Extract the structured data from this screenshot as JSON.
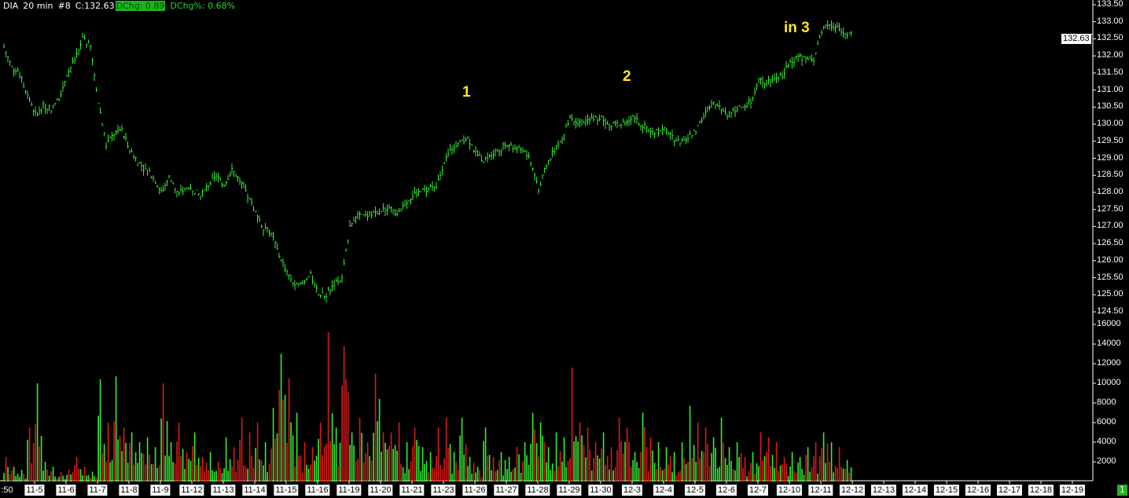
{
  "header": {
    "symbol": "DIA",
    "interval": "20 min",
    "chart_no": "#8",
    "close": "C:132.63",
    "dchg": "DChg: 0.89",
    "dchg_pct": "DChg%: 0.68%"
  },
  "current_price_label": "132.63",
  "first_label": ":50",
  "page_indicator": "1",
  "annotations": [
    "1",
    "2",
    "in 3"
  ],
  "colors": {
    "up": "#33ee33",
    "down": "#dd1a1a",
    "annotation": "#ffe81a",
    "background": "#000000"
  },
  "chart_data": {
    "type": "bar",
    "subtype": "ohlc-with-volume",
    "grid": false,
    "price_axis": {
      "ylim": [
        124.5,
        133.5
      ],
      "ticks": [
        "133.50",
        "133.00",
        "132.50",
        "132.00",
        "131.50",
        "131.00",
        "130.50",
        "130.00",
        "129.50",
        "129.00",
        "128.50",
        "128.00",
        "127.50",
        "127.00",
        "126.50",
        "126.00",
        "125.50",
        "125.00",
        "124.50"
      ]
    },
    "volume_axis": {
      "ylim": [
        0,
        16000
      ],
      "ticks": [
        "16000",
        "14000",
        "12000",
        "10000",
        "8000",
        "6000",
        "4000",
        "2000"
      ]
    },
    "x_ticks": [
      "11-5",
      "11-6",
      "11-7",
      "11-8",
      "11-9",
      "11-12",
      "11-13",
      "11-14",
      "11-15",
      "11-16",
      "11-19",
      "11-20",
      "11-21",
      "11-23",
      "11-26",
      "11-27",
      "11-28",
      "11-29",
      "11-30",
      "12-3",
      "12-4",
      "12-5",
      "12-6",
      "12-7",
      "12-10",
      "12-11",
      "12-12",
      "12-13",
      "12-14",
      "12-15",
      "12-16",
      "12-17",
      "12-18",
      "12-19"
    ],
    "price": [
      132.26,
      131.68,
      131.45,
      130.87,
      130.3,
      130.53,
      130.46,
      130.76,
      131.45,
      131.9,
      132.49,
      132.26,
      130.64,
      129.38,
      129.72,
      129.84,
      129.26,
      128.91,
      128.68,
      128.45,
      127.99,
      128.45,
      127.99,
      128.1,
      128.1,
      127.88,
      128.22,
      128.45,
      128.22,
      128.68,
      128.34,
      127.88,
      127.42,
      126.96,
      126.84,
      126.15,
      125.69,
      125.23,
      125.34,
      125.57,
      124.99,
      124.99,
      125.34,
      125.46,
      127.07,
      127.3,
      127.3,
      127.42,
      127.46,
      127.6,
      127.3,
      127.69,
      127.92,
      128.02,
      128.1,
      128.13,
      128.91,
      129.31,
      129.54,
      129.6,
      129.14,
      128.96,
      129.14,
      129.26,
      129.44,
      129.31,
      129.26,
      128.91,
      128.1,
      128.8,
      129.26,
      129.54,
      130.23,
      130.07,
      130.07,
      130.18,
      130.18,
      130.0,
      130.0,
      130.07,
      130.18,
      130.0,
      129.84,
      129.77,
      129.84,
      129.6,
      129.49,
      129.6,
      129.84,
      130.18,
      130.69,
      130.53,
      130.3,
      130.41,
      130.53,
      130.64,
      131.33,
      131.21,
      131.33,
      131.45,
      131.84,
      131.98,
      131.91,
      131.84,
      132.72,
      132.95,
      132.83,
      132.65
    ],
    "volume": [
      2500,
      1500,
      1200,
      5500,
      10000,
      2000,
      1500,
      1000,
      1200,
      2500,
      1500,
      1000,
      10400,
      6000,
      10700,
      5500,
      5000,
      4000,
      4500,
      3500,
      10000,
      4000,
      6000,
      3000,
      5000,
      2500,
      3000,
      2000,
      4500,
      3500,
      6500,
      5000,
      6000,
      4000,
      7500,
      13000,
      10500,
      7000,
      4000,
      3500,
      6000,
      15200,
      5500,
      13800,
      5000,
      6500,
      4000,
      11000,
      5000,
      5000,
      6000,
      4000,
      5500,
      3500,
      3000,
      5500,
      6500,
      3000,
      6500,
      2500,
      1500,
      5500,
      2500,
      3000,
      2500,
      3500,
      4000,
      7000,
      6000,
      3500,
      5000,
      4500,
      11600,
      6000,
      5500,
      4000,
      5000,
      3500,
      6500,
      5500,
      3000,
      7000,
      4500,
      4000,
      3500,
      3000,
      4000,
      7700,
      6000,
      5500,
      4500,
      6500,
      3500,
      4000,
      2500,
      3000,
      5000,
      4500,
      4000,
      2500,
      3000,
      2500,
      3500,
      4000,
      5000,
      4000,
      3500,
      2200
    ]
  }
}
